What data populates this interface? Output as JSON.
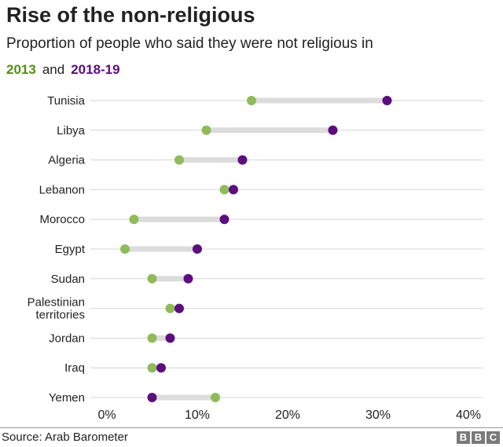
{
  "chart_data": {
    "type": "dumbbell",
    "title": "Rise of the non-religious",
    "subtitle": "Proportion of people who said they were not religious in",
    "legend_joiner": "and",
    "categories": [
      "Tunisia",
      "Libya",
      "Algeria",
      "Lebanon",
      "Morocco",
      "Egypt",
      "Sudan",
      "Palestinian territories",
      "Jordan",
      "Iraq",
      "Yemen"
    ],
    "series": [
      {
        "name": "2013",
        "color": "#8fbb5a",
        "values": [
          16,
          11,
          8,
          13,
          3,
          2,
          5,
          7,
          5,
          5,
          12
        ]
      },
      {
        "name": "2018-19",
        "color": "#5c0e7e",
        "values": [
          31,
          25,
          15,
          14,
          13,
          10,
          9,
          8,
          7,
          6,
          5
        ]
      }
    ],
    "xlim": [
      0,
      40
    ],
    "xticks": [
      "0%",
      "10%",
      "20%",
      "30%",
      "40%"
    ],
    "grid": true,
    "legend_placement": "top-left (in subtitle)"
  },
  "footer": {
    "source": "Source: Arab Barometer",
    "logo": [
      "B",
      "B",
      "C"
    ]
  }
}
